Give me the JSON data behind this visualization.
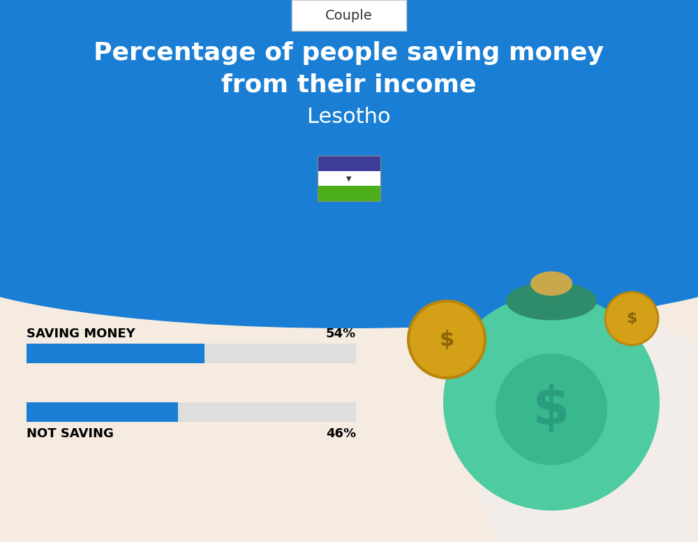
{
  "title_line1": "Percentage of people saving money",
  "title_line2": "from their income",
  "country": "Lesotho",
  "tab_label": "Couple",
  "bar1_label": "SAVING MONEY",
  "bar1_value": 54,
  "bar1_pct": "54%",
  "bar2_label": "NOT SAVING",
  "bar2_value": 46,
  "bar2_pct": "46%",
  "bar_color": "#1a7fd4",
  "bar_bg_color": "#dedede",
  "title_color": "#ffffff",
  "country_color": "#ffffff",
  "bg_top_color": "#1a7fd4",
  "bg_bottom_color": "#f5ebe0",
  "label_color": "#000000",
  "tab_bg": "#ffffff",
  "tab_border": "#cccccc",
  "flag_blue": "#3d3d99",
  "flag_white": "#ffffff",
  "flag_green": "#4caf1a",
  "title_fontsize": 26,
  "country_fontsize": 22,
  "bar_label_fontsize": 13,
  "bar_pct_fontsize": 13
}
